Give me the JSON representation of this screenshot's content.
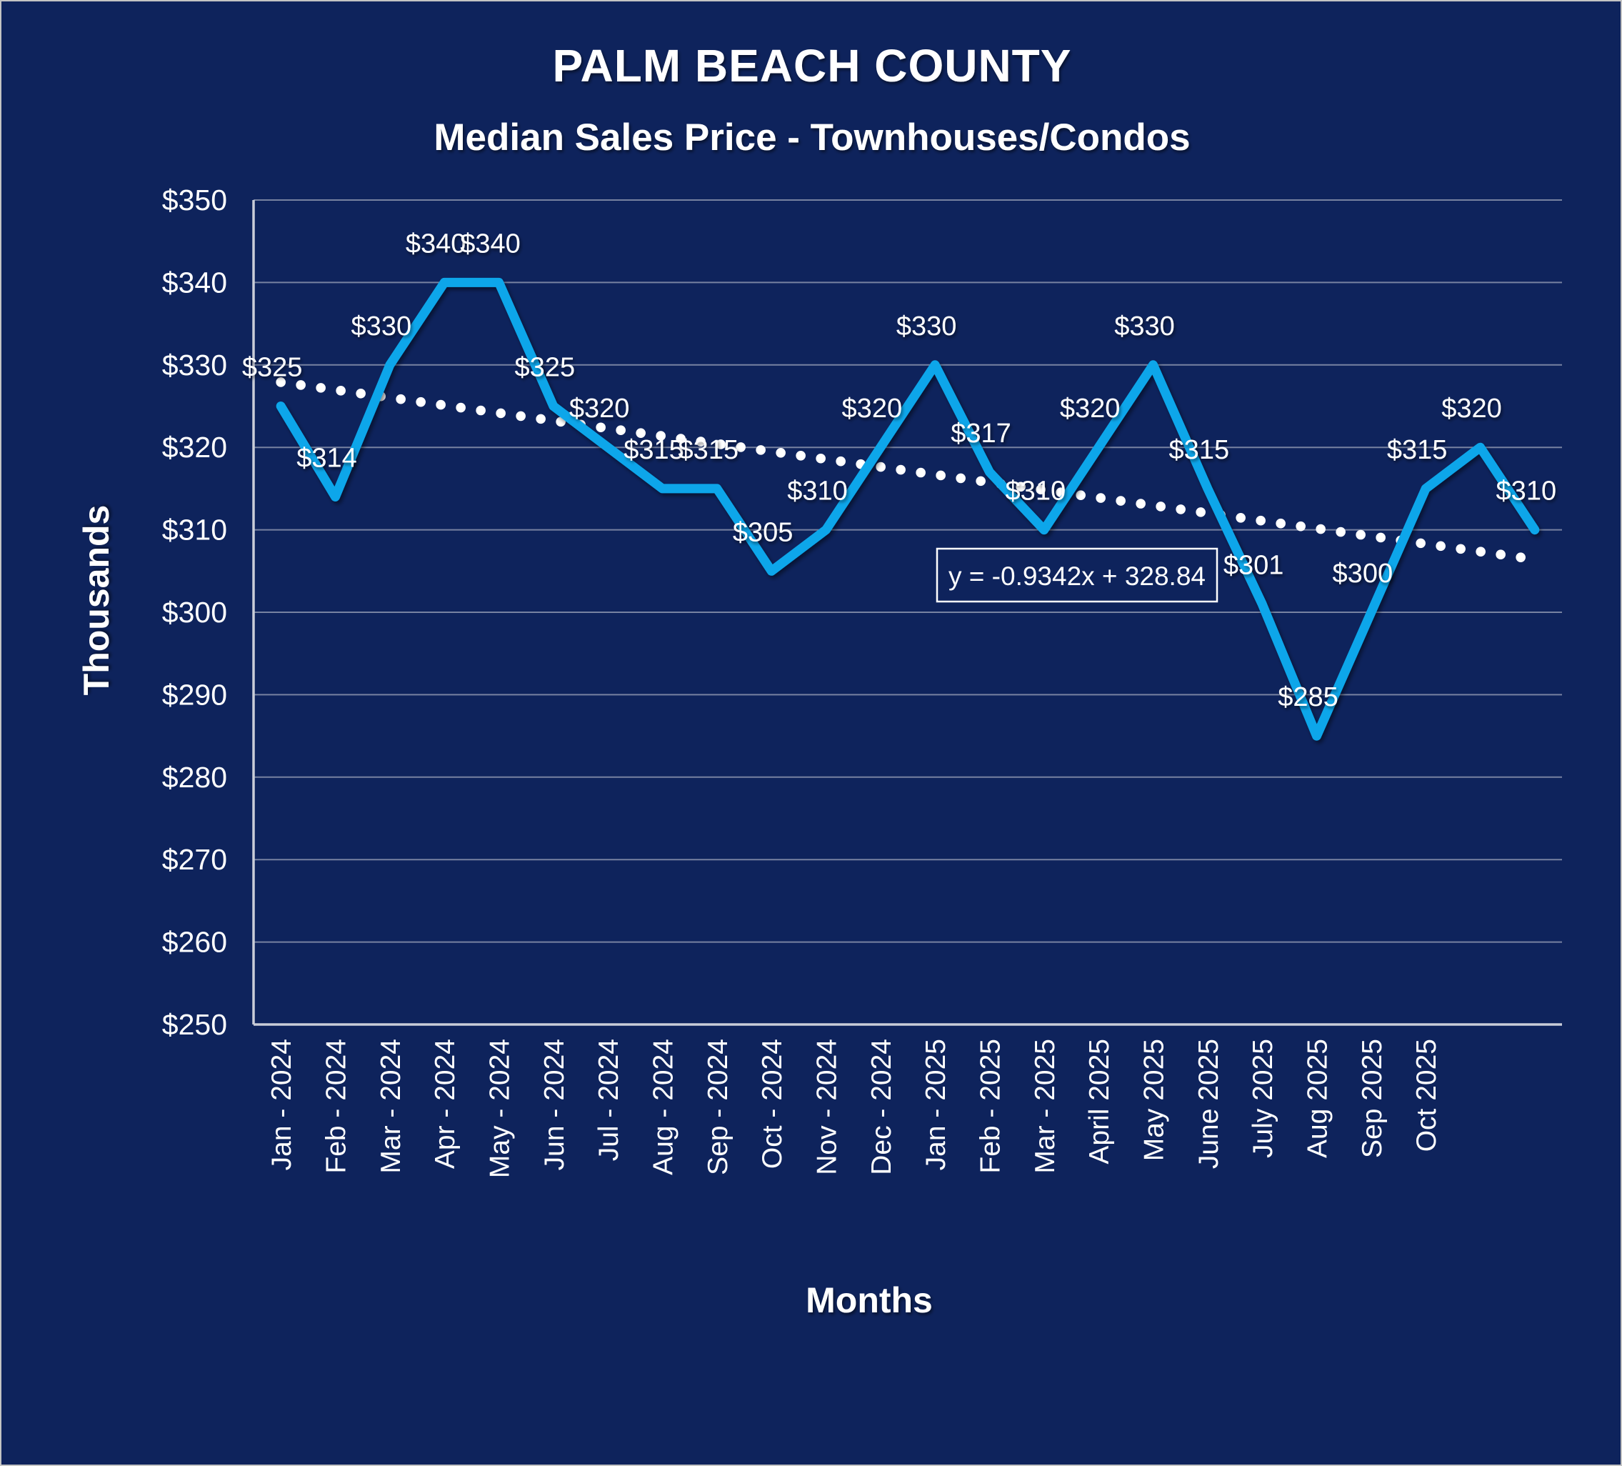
{
  "chart_data": {
    "type": "line",
    "title": "PALM BEACH COUNTY",
    "subtitle": "Median Sales Price - Townhouses/Condos",
    "xlabel": "Months",
    "ylabel": "Thousands",
    "categories": [
      "Jan - 2024",
      "Feb - 2024",
      "Mar - 2024",
      "Apr - 2024",
      "May - 2024",
      "Jun - 2024",
      "Jul - 2024",
      "Aug - 2024",
      "Sep - 2024",
      "Oct - 2024",
      "Nov - 2024",
      "Dec - 2024",
      "Jan - 2025",
      "Feb - 2025",
      "Mar - 2025",
      "April 2025",
      "May 2025",
      "June 2025",
      "July 2025",
      "Aug 2025",
      "Sep 2025",
      "Oct 2025",
      "",
      ""
    ],
    "series": [
      {
        "name": "Median Sales Price",
        "values": [
          325,
          314,
          330,
          340,
          340,
          325,
          320,
          315,
          315,
          305,
          310,
          320,
          330,
          317,
          310,
          320,
          330,
          315,
          301,
          285,
          300,
          315,
          320,
          310
        ]
      }
    ],
    "data_labels": [
      "$325",
      "$314",
      "$330",
      "$340",
      "$340",
      "$325",
      "$320",
      "$315",
      "$315",
      "$305",
      "$310",
      "$320",
      "$330",
      "$317",
      "$310",
      "$320",
      "$330",
      "$315",
      "$301",
      "$285",
      "$300",
      "$315",
      "$320",
      "$310"
    ],
    "y_tick_labels": [
      "$350",
      "$340",
      "$330",
      "$320",
      "$310",
      "$300",
      "$290",
      "$280",
      "$270",
      "$260",
      "$250"
    ],
    "ylim": [
      250,
      350
    ],
    "y_step": 10,
    "grid": true,
    "legend": false,
    "trendline": {
      "equation": "y = -0.9342x + 328.84",
      "slope": -0.9342,
      "intercept": 328.84,
      "style": "dotted"
    }
  },
  "colors": {
    "background": "#0E235C",
    "line": "#0AA6EA",
    "trendline_dots": "#FFFFFF",
    "gridline": "#9AA2B8",
    "text": "#FFFFFF"
  }
}
